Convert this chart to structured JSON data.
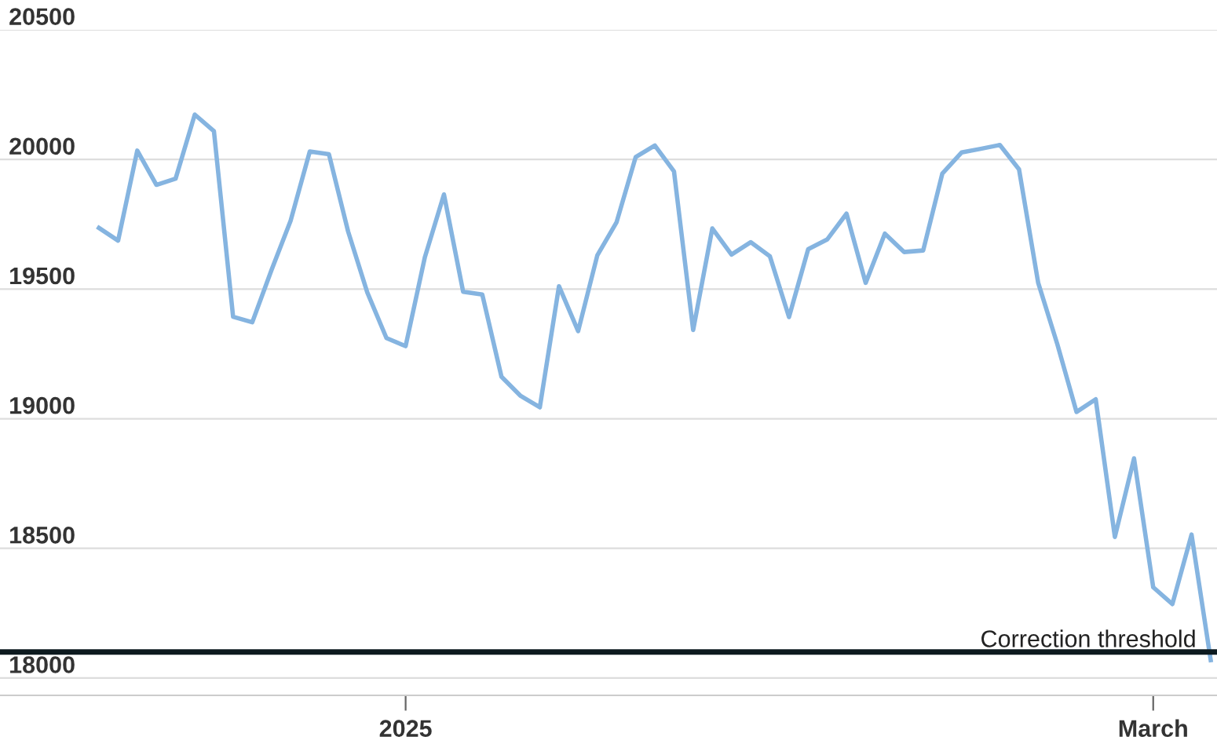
{
  "chart_data": {
    "type": "line",
    "categories": [
      null,
      null,
      null,
      null,
      null,
      null,
      null,
      null,
      null,
      null,
      null,
      null,
      null,
      null,
      null,
      null,
      "2025",
      null,
      null,
      null,
      null,
      null,
      null,
      null,
      null,
      null,
      null,
      null,
      null,
      null,
      null,
      null,
      null,
      null,
      null,
      null,
      null,
      null,
      null,
      null,
      null,
      null,
      null,
      null,
      null,
      null,
      null,
      null,
      null,
      null,
      null,
      null,
      null,
      null,
      null,
      "March",
      null,
      null,
      null
    ],
    "series": [
      {
        "color": "#85b4e0",
        "values": [
          19736,
          19687,
          20034,
          19902,
          19926,
          20173,
          20109,
          19393,
          19372,
          19573,
          19764,
          20031,
          20020,
          19722,
          19487,
          19311,
          19280,
          19622,
          19865,
          19490,
          19479,
          19162,
          19088,
          19044,
          19511,
          19338,
          19630,
          19757,
          20009,
          20054,
          19954,
          19342,
          19734,
          19633,
          19681,
          19627,
          19392,
          19654,
          19692,
          19791,
          19524,
          19714,
          19643,
          19649,
          19946,
          20027,
          20041,
          20056,
          19962,
          19524,
          19287,
          19026,
          19075,
          18544,
          18847,
          18350,
          18285,
          18553,
          18069
        ]
      }
    ],
    "ylim": [
      17933,
      20500
    ],
    "yticks": [
      18000,
      18500,
      19000,
      19500,
      20000,
      20500
    ],
    "grid": "y",
    "legend": false,
    "marker": "none",
    "line_style": "solid",
    "ref_lines": [
      {
        "axis": "y",
        "value": 18100,
        "label": "Correction threshold",
        "color": "#0d1a1f"
      }
    ]
  }
}
